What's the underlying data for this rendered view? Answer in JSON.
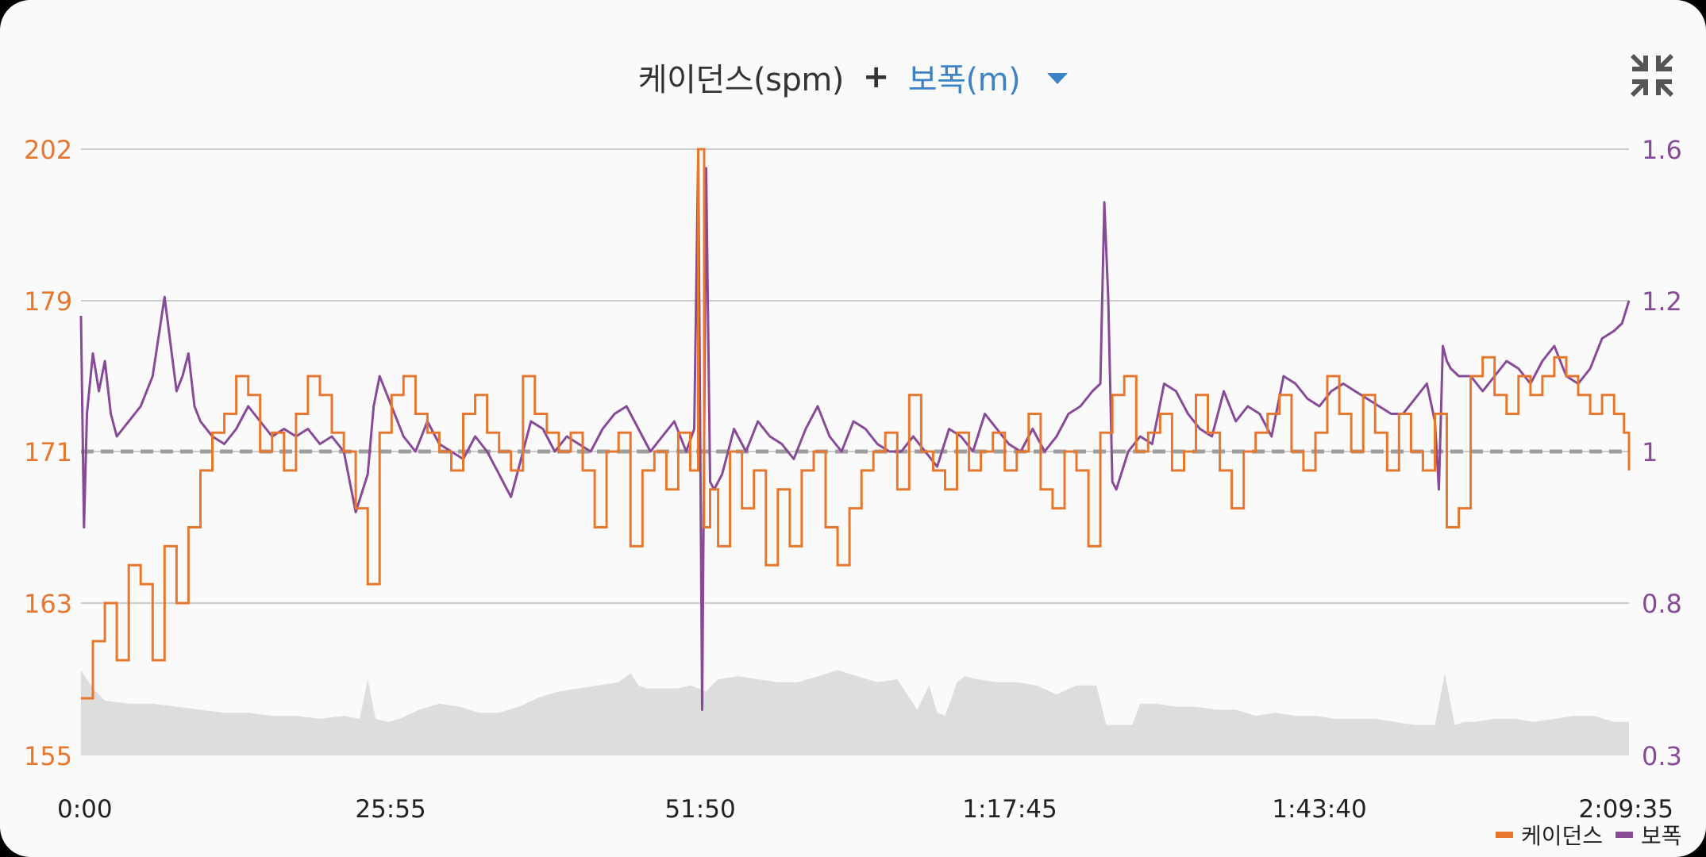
{
  "header": {
    "metric_primary": "케이던스(spm)",
    "plus": "+",
    "metric_secondary": "보폭(m)",
    "dropdown_icon": "caret-down-icon",
    "collapse_icon": "collapse-icon"
  },
  "colors": {
    "cadence": "#e8772e",
    "stride": "#874a96",
    "elevation": "#dddddd",
    "average_line": "#9e9e9e",
    "grid": "#bdbdbd",
    "accent": "#3c82c4"
  },
  "chart_data": {
    "type": "line",
    "x_unit": "seconds",
    "x_range": [
      0,
      7775
    ],
    "x_ticks": [
      {
        "value": 0,
        "label": "0:00"
      },
      {
        "value": 1555,
        "label": "25:55"
      },
      {
        "value": 3110,
        "label": "51:50"
      },
      {
        "value": 4665,
        "label": "1:17:45"
      },
      {
        "value": 6220,
        "label": "1:43:40"
      },
      {
        "value": 7775,
        "label": "2:09:35"
      }
    ],
    "y_left": {
      "range": [
        155,
        202
      ],
      "ticks": [
        "155",
        "163",
        "171",
        "179",
        "202"
      ],
      "tick_values": [
        155,
        163,
        171,
        179,
        202
      ]
    },
    "y_right": {
      "range": [
        0.3,
        1.6
      ],
      "ticks": [
        "0.3",
        "0.8",
        "1",
        "1.2",
        "1.6"
      ],
      "tick_values": [
        0.3,
        0.8,
        1.0,
        1.2,
        1.6
      ]
    },
    "average_cadence": 171,
    "grid": true,
    "legend_position": "bottom-right",
    "series": [
      {
        "name": "케이던스",
        "axis": "left",
        "x": [
          0,
          60,
          120,
          180,
          240,
          300,
          360,
          420,
          480,
          540,
          600,
          660,
          720,
          780,
          840,
          900,
          960,
          1020,
          1080,
          1140,
          1200,
          1260,
          1320,
          1380,
          1440,
          1500,
          1560,
          1620,
          1680,
          1740,
          1800,
          1860,
          1920,
          1980,
          2040,
          2100,
          2160,
          2220,
          2280,
          2340,
          2400,
          2460,
          2520,
          2580,
          2640,
          2700,
          2760,
          2820,
          2880,
          2940,
          3000,
          3060,
          3100,
          3130,
          3160,
          3200,
          3260,
          3320,
          3380,
          3440,
          3500,
          3560,
          3620,
          3680,
          3740,
          3800,
          3860,
          3920,
          3980,
          4040,
          4100,
          4160,
          4220,
          4280,
          4340,
          4400,
          4460,
          4520,
          4580,
          4640,
          4700,
          4760,
          4820,
          4880,
          4940,
          5000,
          5060,
          5120,
          5180,
          5240,
          5300,
          5360,
          5420,
          5480,
          5540,
          5600,
          5660,
          5720,
          5780,
          5840,
          5900,
          5960,
          6020,
          6080,
          6140,
          6200,
          6260,
          6320,
          6380,
          6440,
          6500,
          6560,
          6620,
          6680,
          6740,
          6800,
          6860,
          6920,
          6980,
          7040,
          7100,
          7160,
          7220,
          7280,
          7340,
          7400,
          7460,
          7520,
          7580,
          7640,
          7700,
          7750,
          7775
        ],
        "values": [
          158,
          161,
          163,
          160,
          165,
          164,
          160,
          166,
          163,
          167,
          170,
          172,
          173,
          175,
          174,
          171,
          172,
          170,
          173,
          175,
          174,
          172,
          171,
          168,
          164,
          172,
          174,
          175,
          173,
          172,
          171,
          170,
          173,
          174,
          172,
          171,
          170,
          175,
          173,
          172,
          171,
          172,
          170,
          167,
          171,
          172,
          166,
          170,
          171,
          169,
          172,
          170,
          202,
          167,
          169,
          166,
          171,
          168,
          170,
          165,
          169,
          166,
          170,
          171,
          167,
          165,
          168,
          170,
          171,
          172,
          169,
          174,
          171,
          170,
          169,
          172,
          170,
          171,
          172,
          170,
          171,
          173,
          169,
          168,
          171,
          170,
          166,
          172,
          174,
          175,
          171,
          172,
          173,
          170,
          171,
          174,
          172,
          170,
          168,
          171,
          172,
          173,
          174,
          171,
          170,
          172,
          175,
          173,
          171,
          174,
          172,
          170,
          173,
          171,
          170,
          173,
          167,
          168,
          175,
          176,
          174,
          173,
          175,
          174,
          175,
          176,
          175,
          174,
          173,
          174,
          173,
          172,
          170
        ]
      },
      {
        "name": "보폭",
        "axis": "right",
        "x": [
          0,
          15,
          30,
          60,
          90,
          120,
          150,
          180,
          240,
          300,
          360,
          420,
          480,
          510,
          540,
          570,
          600,
          660,
          720,
          780,
          840,
          900,
          960,
          1020,
          1080,
          1140,
          1200,
          1260,
          1320,
          1380,
          1440,
          1470,
          1500,
          1560,
          1620,
          1680,
          1740,
          1800,
          1860,
          1920,
          1980,
          2040,
          2100,
          2160,
          2200,
          2260,
          2320,
          2380,
          2440,
          2500,
          2560,
          2620,
          2680,
          2740,
          2800,
          2860,
          2920,
          2980,
          3040,
          3080,
          3100,
          3120,
          3140,
          3160,
          3180,
          3220,
          3280,
          3340,
          3400,
          3460,
          3520,
          3580,
          3640,
          3700,
          3760,
          3820,
          3880,
          3940,
          4000,
          4060,
          4120,
          4180,
          4240,
          4300,
          4360,
          4420,
          4480,
          4540,
          4600,
          4660,
          4720,
          4780,
          4840,
          4900,
          4960,
          5020,
          5080,
          5120,
          5140,
          5160,
          5180,
          5200,
          5260,
          5320,
          5380,
          5440,
          5500,
          5560,
          5620,
          5680,
          5740,
          5800,
          5860,
          5920,
          5980,
          6040,
          6100,
          6160,
          6220,
          6280,
          6340,
          6400,
          6460,
          6520,
          6580,
          6640,
          6700,
          6760,
          6800,
          6820,
          6840,
          6860,
          6880,
          6920,
          6980,
          7040,
          7100,
          7160,
          7220,
          7280,
          7340,
          7400,
          7460,
          7520,
          7580,
          7640,
          7700,
          7740,
          7775
        ],
        "values": [
          1.18,
          0.9,
          1.05,
          1.13,
          1.08,
          1.12,
          1.05,
          1.02,
          1.04,
          1.06,
          1.1,
          1.21,
          1.08,
          1.1,
          1.13,
          1.06,
          1.04,
          1.02,
          1.01,
          1.03,
          1.06,
          1.04,
          1.02,
          1.03,
          1.02,
          1.03,
          1.01,
          1.02,
          1.0,
          0.92,
          0.97,
          1.06,
          1.1,
          1.06,
          1.02,
          1.0,
          1.04,
          1.01,
          1.0,
          0.99,
          1.02,
          1.0,
          0.97,
          0.94,
          0.98,
          1.04,
          1.03,
          1.0,
          1.02,
          1.01,
          1.0,
          1.03,
          1.05,
          1.06,
          1.03,
          1.0,
          1.02,
          1.04,
          1.0,
          1.03,
          1.58,
          0.45,
          1.55,
          0.96,
          0.95,
          0.97,
          1.03,
          1.0,
          1.04,
          1.02,
          1.01,
          0.99,
          1.03,
          1.06,
          1.02,
          1.0,
          1.04,
          1.03,
          1.01,
          1.0,
          1.0,
          1.02,
          1.0,
          0.98,
          1.03,
          1.02,
          1.0,
          1.05,
          1.03,
          1.01,
          1.0,
          1.03,
          1.0,
          1.02,
          1.05,
          1.06,
          1.08,
          1.09,
          1.46,
          1.2,
          0.96,
          0.95,
          1.0,
          1.02,
          1.01,
          1.09,
          1.08,
          1.05,
          1.03,
          1.02,
          1.08,
          1.04,
          1.06,
          1.05,
          1.02,
          1.1,
          1.09,
          1.07,
          1.06,
          1.08,
          1.09,
          1.08,
          1.07,
          1.06,
          1.05,
          1.05,
          1.07,
          1.09,
          1.04,
          0.95,
          1.14,
          1.12,
          1.11,
          1.1,
          1.1,
          1.08,
          1.1,
          1.12,
          1.11,
          1.09,
          1.12,
          1.14,
          1.1,
          1.09,
          1.11,
          1.15,
          1.16,
          1.17,
          1.2
        ]
      },
      {
        "name": "elevation",
        "axis": "none",
        "x": [
          0,
          60,
          120,
          240,
          360,
          480,
          600,
          720,
          840,
          960,
          1080,
          1200,
          1320,
          1400,
          1440,
          1480,
          1540,
          1600,
          1700,
          1800,
          1900,
          2000,
          2100,
          2200,
          2300,
          2400,
          2500,
          2600,
          2700,
          2760,
          2800,
          2840,
          2900,
          3000,
          3060,
          3100,
          3140,
          3200,
          3300,
          3400,
          3500,
          3600,
          3700,
          3800,
          3900,
          4000,
          4100,
          4160,
          4200,
          4260,
          4300,
          4340,
          4400,
          4440,
          4500,
          4600,
          4700,
          4800,
          4900,
          5000,
          5100,
          5150,
          5200,
          5280,
          5320,
          5400,
          5500,
          5600,
          5700,
          5800,
          5900,
          6000,
          6100,
          6200,
          6300,
          6400,
          6500,
          6600,
          6700,
          6800,
          6850,
          6900,
          6950,
          7000,
          7100,
          7200,
          7300,
          7400,
          7500,
          7600,
          7700,
          7775
        ],
        "values": [
          0.58,
          0.52,
          0.48,
          0.47,
          0.47,
          0.46,
          0.45,
          0.44,
          0.44,
          0.43,
          0.43,
          0.42,
          0.43,
          0.42,
          0.55,
          0.42,
          0.41,
          0.42,
          0.45,
          0.47,
          0.46,
          0.44,
          0.44,
          0.46,
          0.49,
          0.51,
          0.52,
          0.53,
          0.54,
          0.57,
          0.53,
          0.52,
          0.52,
          0.52,
          0.53,
          0.52,
          0.51,
          0.55,
          0.56,
          0.55,
          0.54,
          0.54,
          0.56,
          0.58,
          0.56,
          0.54,
          0.55,
          0.49,
          0.45,
          0.53,
          0.44,
          0.43,
          0.54,
          0.56,
          0.55,
          0.54,
          0.54,
          0.53,
          0.5,
          0.53,
          0.53,
          0.4,
          0.4,
          0.4,
          0.47,
          0.47,
          0.46,
          0.46,
          0.45,
          0.45,
          0.43,
          0.44,
          0.43,
          0.43,
          0.42,
          0.42,
          0.42,
          0.41,
          0.4,
          0.4,
          0.57,
          0.4,
          0.41,
          0.41,
          0.42,
          0.42,
          0.41,
          0.42,
          0.43,
          0.43,
          0.41,
          0.41
        ]
      }
    ]
  },
  "legend": [
    {
      "label": "케이던스",
      "color": "#e8772e"
    },
    {
      "label": "보폭",
      "color": "#874a96"
    }
  ]
}
